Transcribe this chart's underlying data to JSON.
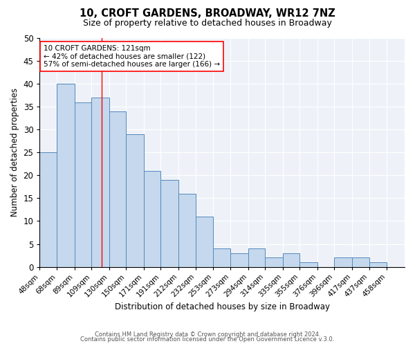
{
  "title": "10, CROFT GARDENS, BROADWAY, WR12 7NZ",
  "subtitle": "Size of property relative to detached houses in Broadway",
  "xlabel": "Distribution of detached houses by size in Broadway",
  "ylabel": "Number of detached properties",
  "bar_color": "#c5d8ed",
  "bar_edge_color": "#5588bb",
  "background_color": "#eef2f8",
  "bins": [
    "48sqm",
    "68sqm",
    "89sqm",
    "109sqm",
    "130sqm",
    "150sqm",
    "171sqm",
    "191sqm",
    "212sqm",
    "232sqm",
    "253sqm",
    "273sqm",
    "294sqm",
    "314sqm",
    "335sqm",
    "355sqm",
    "376sqm",
    "396sqm",
    "417sqm",
    "437sqm",
    "458sqm"
  ],
  "bin_edges": [
    48,
    68,
    89,
    109,
    130,
    150,
    171,
    191,
    212,
    232,
    253,
    273,
    294,
    314,
    335,
    355,
    376,
    396,
    417,
    437,
    458
  ],
  "values": [
    25,
    40,
    36,
    37,
    34,
    29,
    21,
    19,
    16,
    11,
    4,
    3,
    4,
    2,
    3,
    1,
    0,
    2,
    2,
    1,
    0
  ],
  "ylim": [
    0,
    50
  ],
  "yticks": [
    0,
    5,
    10,
    15,
    20,
    25,
    30,
    35,
    40,
    45,
    50
  ],
  "property_line_x": 121,
  "annotation_title": "10 CROFT GARDENS: 121sqm",
  "annotation_line1": "← 42% of detached houses are smaller (122)",
  "annotation_line2": "57% of semi-detached houses are larger (166) →",
  "footer1": "Contains HM Land Registry data © Crown copyright and database right 2024.",
  "footer2": "Contains public sector information licensed under the Open Government Licence v.3.0."
}
